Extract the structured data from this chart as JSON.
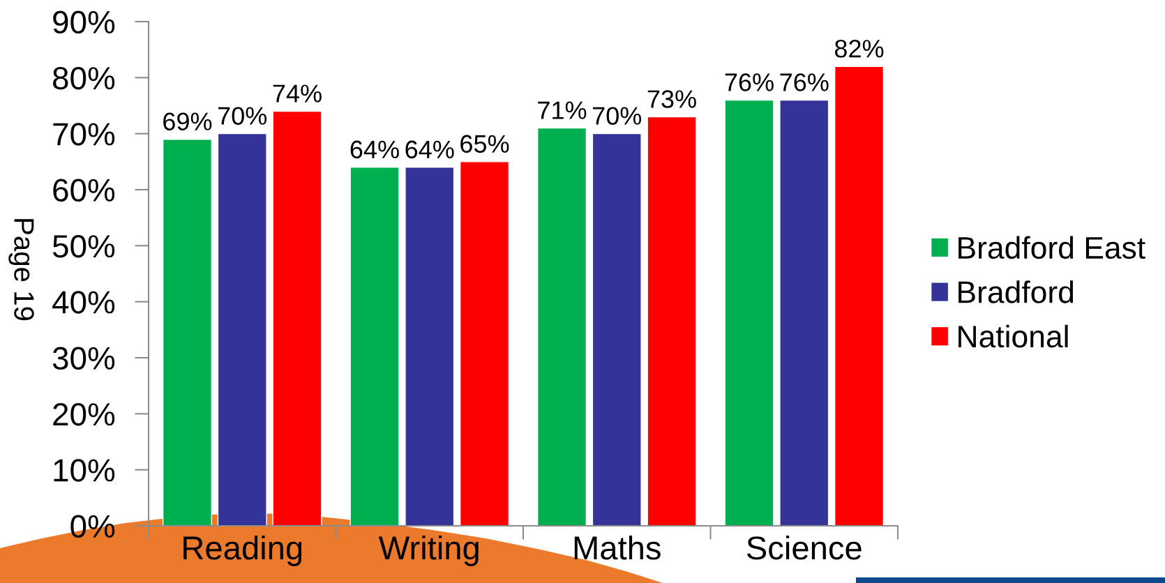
{
  "chart_data": {
    "type": "bar",
    "categories": [
      "Reading",
      "Writing",
      "Maths",
      "Science"
    ],
    "series": [
      {
        "name": "Bradford East",
        "color": "#00b050",
        "values": [
          69,
          64,
          71,
          76
        ],
        "value_labels": [
          "69%",
          "64%",
          "71%",
          "76%"
        ]
      },
      {
        "name": "Bradford",
        "color": "#333399",
        "values": [
          70,
          64,
          70,
          76
        ],
        "value_labels": [
          "70%",
          "64%",
          "70%",
          "76%"
        ]
      },
      {
        "name": "National",
        "color": "#ff0000",
        "values": [
          74,
          65,
          73,
          82
        ],
        "value_labels": [
          "74%",
          "65%",
          "73%",
          "82%"
        ]
      }
    ],
    "ylim": [
      0,
      90
    ],
    "yticks": [
      {
        "value": 0,
        "label": "0%"
      },
      {
        "value": 10,
        "label": "10%"
      },
      {
        "value": 20,
        "label": "20%"
      },
      {
        "value": 30,
        "label": "30%"
      },
      {
        "value": 40,
        "label": "40%"
      },
      {
        "value": 50,
        "label": "50%"
      },
      {
        "value": 60,
        "label": "60%"
      },
      {
        "value": 70,
        "label": "70%"
      },
      {
        "value": 80,
        "label": "80%"
      },
      {
        "value": 90,
        "label": "90%"
      }
    ],
    "legend": "right",
    "annotations": [
      "Page 19"
    ]
  }
}
